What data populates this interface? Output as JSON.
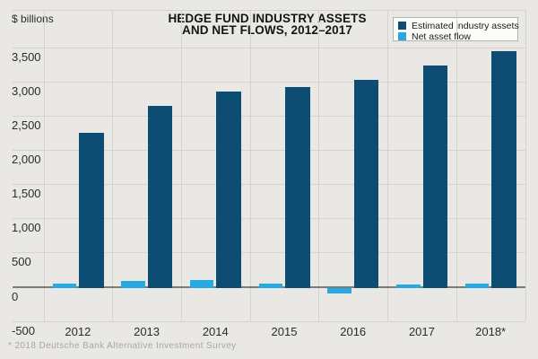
{
  "header": {
    "units_label": "$ billions",
    "title_line1": "HEDGE FUND INDUSTRY ASSETS",
    "title_line2": "AND NET FLOWS, 2012–2017"
  },
  "legend": {
    "items": [
      {
        "label": "Estimated industry assets",
        "color": "#0e4d73",
        "icon": "square-swatch-navy"
      },
      {
        "label": "Net asset flow",
        "color": "#29a9e1",
        "icon": "square-swatch-cyan"
      }
    ]
  },
  "footer": {
    "note": "* 2018 Deutsche Bank Alternative Investment Survey"
  },
  "chart_data": {
    "type": "bar",
    "title": "HEDGE FUND INDUSTRY ASSETS AND NET FLOWS, 2012–2017",
    "ylabel": "$ billions",
    "xlabel": "",
    "categories": [
      "2012",
      "2013",
      "2014",
      "2015",
      "2016",
      "2017",
      "2018*"
    ],
    "series": [
      {
        "name": "Estimated industry assets",
        "color": "#0e4d73",
        "values": [
          2250,
          2640,
          2860,
          2920,
          3020,
          3230,
          3450
        ]
      },
      {
        "name": "Net asset flow",
        "color": "#29a9e1",
        "values": [
          50,
          80,
          100,
          50,
          -75,
          30,
          45
        ]
      }
    ],
    "ylim": [
      -500,
      4000
    ],
    "ytick_step": 500,
    "ytick_labels": [
      "3,500",
      "3,000",
      "2,500",
      "2,000",
      "1,500",
      "1,000",
      "500",
      "0",
      "-500"
    ],
    "grid": true,
    "legend_position": "top-right",
    "footnote": "* 2018 Deutsche Bank Alternative Investment Survey"
  }
}
